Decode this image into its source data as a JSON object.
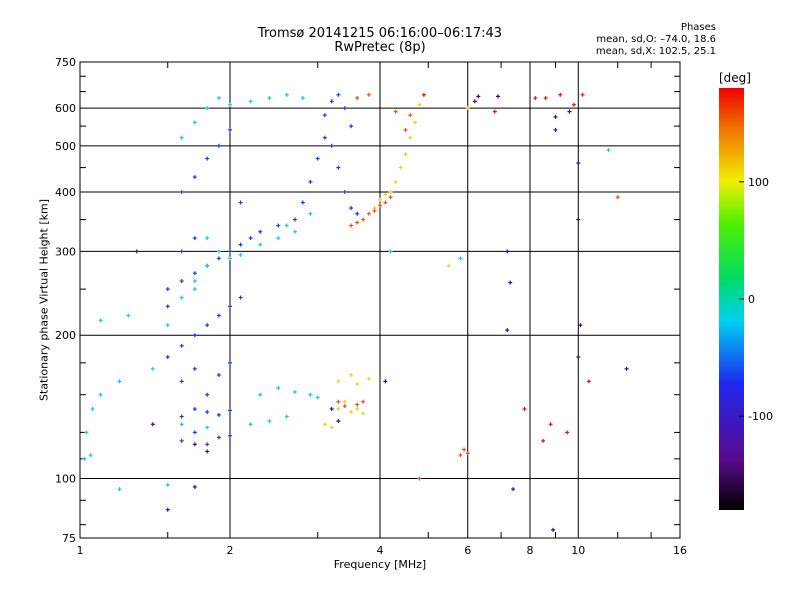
{
  "header": {
    "title_line1": "Tromsø 20141215 06:16:00–06:17:43",
    "title_line2": "RwPretec (8p)",
    "stats_title": "Phases",
    "stats_line1": "mean, sd,O: –74.0, 18.6",
    "stats_line2": "mean, sd,X: 102.5, 25.1"
  },
  "chart_data": {
    "type": "scatter",
    "xlabel": "Frequency [MHz]",
    "ylabel": "Stationary phase Virtual Height [km]",
    "x_scale": "log",
    "y_scale": "log",
    "xlim": [
      1,
      16
    ],
    "ylim": [
      75,
      750
    ],
    "x_ticks": [
      1,
      2,
      4,
      6,
      8,
      10,
      16
    ],
    "y_ticks": [
      75,
      100,
      200,
      300,
      400,
      500,
      600,
      750
    ],
    "grid": true,
    "colorbar": {
      "label": "[deg]",
      "range": [
        -180,
        180
      ],
      "ticks": [
        100,
        0,
        -100
      ],
      "colormap": "rainbow"
    },
    "series": [
      {
        "color": "#1a3cf0",
        "points": [
          [
            1.6,
            120
          ],
          [
            1.7,
            125
          ],
          [
            1.8,
            118
          ],
          [
            1.9,
            122
          ],
          [
            2.0,
            123
          ],
          [
            1.6,
            135
          ],
          [
            1.7,
            140
          ],
          [
            1.8,
            138
          ],
          [
            1.9,
            136
          ],
          [
            2.0,
            139
          ],
          [
            1.5,
            180
          ],
          [
            1.6,
            190
          ],
          [
            1.7,
            200
          ],
          [
            1.8,
            210
          ],
          [
            1.9,
            220
          ],
          [
            2.0,
            230
          ],
          [
            2.1,
            240
          ],
          [
            1.5,
            250
          ],
          [
            1.6,
            260
          ],
          [
            1.7,
            270
          ],
          [
            1.8,
            280
          ],
          [
            1.9,
            290
          ],
          [
            2.0,
            300
          ],
          [
            2.1,
            310
          ],
          [
            2.2,
            320
          ],
          [
            2.3,
            330
          ],
          [
            2.5,
            340
          ],
          [
            2.7,
            350
          ],
          [
            2.8,
            380
          ],
          [
            2.9,
            420
          ],
          [
            3.0,
            470
          ],
          [
            3.1,
            520
          ],
          [
            3.1,
            580
          ],
          [
            3.2,
            620
          ],
          [
            3.3,
            640
          ],
          [
            3.4,
            600
          ],
          [
            3.5,
            550
          ],
          [
            3.2,
            500
          ],
          [
            3.3,
            450
          ],
          [
            3.4,
            400
          ],
          [
            3.5,
            370
          ],
          [
            3.6,
            360
          ],
          [
            1.6,
            400
          ],
          [
            1.7,
            430
          ],
          [
            1.8,
            470
          ],
          [
            1.9,
            500
          ],
          [
            2.0,
            540
          ],
          [
            2.1,
            380
          ],
          [
            1.6,
            160
          ],
          [
            1.7,
            170
          ],
          [
            1.8,
            150
          ],
          [
            1.9,
            165
          ],
          [
            2.0,
            175
          ],
          [
            1.5,
            230
          ],
          [
            1.6,
            300
          ],
          [
            1.7,
            320
          ]
        ]
      },
      {
        "color": "#1ec8e8",
        "points": [
          [
            1.02,
            110
          ],
          [
            1.05,
            112
          ],
          [
            1.03,
            125
          ],
          [
            1.06,
            140
          ],
          [
            1.1,
            150
          ],
          [
            1.2,
            160
          ],
          [
            1.4,
            170
          ],
          [
            1.5,
            210
          ],
          [
            1.6,
            240
          ],
          [
            1.7,
            260
          ],
          [
            1.8,
            280
          ],
          [
            1.9,
            300
          ],
          [
            2.0,
            290
          ],
          [
            2.1,
            295
          ],
          [
            2.3,
            310
          ],
          [
            2.5,
            320
          ],
          [
            2.7,
            330
          ],
          [
            2.6,
            340
          ],
          [
            2.9,
            360
          ],
          [
            1.6,
            520
          ],
          [
            1.7,
            560
          ],
          [
            1.8,
            600
          ],
          [
            1.9,
            630
          ],
          [
            2.0,
            610
          ],
          [
            2.2,
            620
          ],
          [
            2.4,
            630
          ],
          [
            2.6,
            640
          ],
          [
            2.8,
            630
          ],
          [
            2.3,
            150
          ],
          [
            2.5,
            155
          ],
          [
            2.7,
            152
          ],
          [
            2.9,
            150
          ],
          [
            3.0,
            148
          ],
          [
            2.2,
            130
          ],
          [
            2.4,
            132
          ],
          [
            2.6,
            135
          ],
          [
            1.6,
            130
          ],
          [
            1.8,
            128
          ],
          [
            1.25,
            220
          ],
          [
            1.1,
            215
          ],
          [
            1.2,
            95
          ],
          [
            1.5,
            97
          ],
          [
            4.2,
            300
          ],
          [
            11.5,
            490
          ],
          [
            5.8,
            290
          ],
          [
            1.7,
            250
          ],
          [
            1.8,
            320
          ]
        ]
      },
      {
        "color": "#f0d21e",
        "points": [
          [
            3.3,
            140
          ],
          [
            3.4,
            145
          ],
          [
            3.5,
            138
          ],
          [
            3.6,
            140
          ],
          [
            3.7,
            137
          ],
          [
            4.2,
            400
          ],
          [
            4.3,
            420
          ],
          [
            4.4,
            450
          ],
          [
            4.5,
            480
          ],
          [
            4.6,
            520
          ],
          [
            4.7,
            560
          ],
          [
            4.8,
            610
          ],
          [
            4.9,
            640
          ],
          [
            3.9,
            370
          ],
          [
            4.0,
            385
          ],
          [
            4.1,
            395
          ],
          [
            3.1,
            130
          ],
          [
            3.2,
            128
          ],
          [
            3.3,
            160
          ],
          [
            3.5,
            165
          ],
          [
            5.5,
            280
          ],
          [
            6.0,
            600
          ],
          [
            3.6,
            158
          ],
          [
            3.8,
            162
          ]
        ]
      },
      {
        "color": "#f0501e",
        "points": [
          [
            3.5,
            340
          ],
          [
            3.6,
            345
          ],
          [
            3.7,
            350
          ],
          [
            3.8,
            360
          ],
          [
            3.9,
            365
          ],
          [
            4.0,
            375
          ],
          [
            4.1,
            380
          ],
          [
            4.2,
            390
          ],
          [
            4.5,
            540
          ],
          [
            4.6,
            580
          ],
          [
            3.3,
            145
          ],
          [
            3.4,
            142
          ],
          [
            3.6,
            143
          ],
          [
            3.7,
            145
          ],
          [
            5.8,
            112
          ],
          [
            5.9,
            115
          ],
          [
            6.0,
            113
          ],
          [
            4.8,
            100
          ],
          [
            12.0,
            390
          ],
          [
            3.6,
            630
          ],
          [
            3.8,
            640
          ],
          [
            4.3,
            590
          ]
        ]
      },
      {
        "color": "#3c0a8c",
        "points": [
          [
            1.7,
            118
          ],
          [
            1.8,
            114
          ],
          [
            3.2,
            140
          ],
          [
            3.3,
            132
          ],
          [
            4.1,
            160
          ],
          [
            7.2,
            205
          ],
          [
            7.4,
            95
          ],
          [
            9.0,
            575
          ],
          [
            9.0,
            540
          ],
          [
            10.0,
            460
          ],
          [
            10.0,
            350
          ],
          [
            10.1,
            210
          ],
          [
            8.9,
            78
          ],
          [
            6.3,
            635
          ],
          [
            6.9,
            635
          ],
          [
            7.2,
            300
          ],
          [
            7.3,
            258
          ],
          [
            9.6,
            590
          ],
          [
            10.0,
            180
          ],
          [
            12.5,
            170
          ],
          [
            1.5,
            86
          ],
          [
            1.7,
            96
          ],
          [
            1.3,
            300
          ],
          [
            1.4,
            130
          ],
          [
            6.2,
            620
          ]
        ]
      },
      {
        "color": "#e61414",
        "points": [
          [
            9.8,
            610
          ],
          [
            10.2,
            640
          ],
          [
            8.6,
            630
          ],
          [
            9.2,
            640
          ],
          [
            7.8,
            140
          ],
          [
            8.8,
            130
          ],
          [
            9.5,
            125
          ],
          [
            10.5,
            160
          ],
          [
            8.5,
            120
          ],
          [
            4.9,
            640
          ],
          [
            6.8,
            590
          ],
          [
            8.2,
            630
          ]
        ]
      }
    ]
  }
}
